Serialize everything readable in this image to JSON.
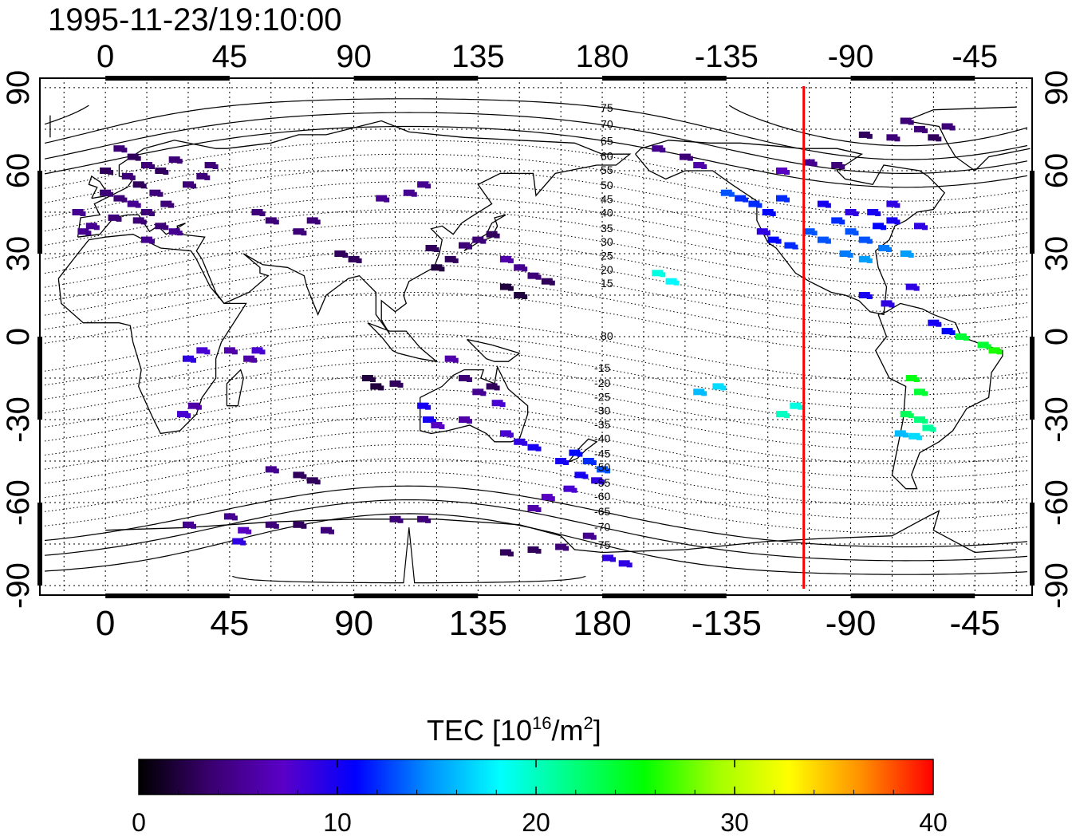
{
  "title": "1995-11-23/19:10:00",
  "x_ticks": [
    "0",
    "45",
    "90",
    "135",
    "180",
    "-135",
    "-90",
    "-45"
  ],
  "y_ticks": [
    "90",
    "60",
    "30",
    "0",
    "-30",
    "-60",
    "-90"
  ],
  "mag_lat_labels_north": [
    "80",
    "75",
    "70",
    "65",
    "60",
    "55",
    "50",
    "45",
    "40",
    "35",
    "30",
    "25",
    "20",
    "15"
  ],
  "mag_lat_labels_south": [
    "-15",
    "-20",
    "-25",
    "-30",
    "-35",
    "-40",
    "-45",
    "-50",
    "-55",
    "-60",
    "-65",
    "-70",
    "-75"
  ],
  "colorbar": {
    "label_prefix": "TEC  [10",
    "label_exp": "16",
    "label_mid": "/m",
    "label_exp2": "2",
    "label_suffix": "]",
    "ticks": [
      "0",
      "10",
      "20",
      "30",
      "40"
    ],
    "colors": [
      "#000000",
      "#3a0070",
      "#5a00c8",
      "#0000ff",
      "#0090ff",
      "#00ffff",
      "#00ff80",
      "#00ff00",
      "#a0ff00",
      "#ffff00",
      "#ff9000",
      "#ff0000"
    ]
  },
  "marker": {
    "longitude": -107,
    "color": "#ff0000"
  },
  "map_data": {
    "projection": "equirectangular",
    "lon_range": [
      -22,
      334
    ],
    "lat_range": [
      -92,
      92
    ],
    "value_range": [
      0,
      40
    ],
    "tec_points": [
      {
        "lon": 5,
        "lat": 68,
        "tec": 4
      },
      {
        "lon": 10,
        "lat": 65,
        "tec": 3
      },
      {
        "lon": 15,
        "lat": 62,
        "tec": 4
      },
      {
        "lon": 20,
        "lat": 60,
        "tec": 3
      },
      {
        "lon": 25,
        "lat": 64,
        "tec": 4
      },
      {
        "lon": 8,
        "lat": 58,
        "tec": 4
      },
      {
        "lon": 12,
        "lat": 55,
        "tec": 3
      },
      {
        "lon": 18,
        "lat": 52,
        "tec": 4
      },
      {
        "lon": 5,
        "lat": 50,
        "tec": 4
      },
      {
        "lon": 0,
        "lat": 52,
        "tec": 4
      },
      {
        "lon": 10,
        "lat": 48,
        "tec": 5
      },
      {
        "lon": 15,
        "lat": 45,
        "tec": 4
      },
      {
        "lon": -5,
        "lat": 40,
        "tec": 5
      },
      {
        "lon": 3,
        "lat": 43,
        "tec": 4
      },
      {
        "lon": 12,
        "lat": 42,
        "tec": 4
      },
      {
        "lon": 20,
        "lat": 40,
        "tec": 4
      },
      {
        "lon": 25,
        "lat": 38,
        "tec": 5
      },
      {
        "lon": 30,
        "lat": 55,
        "tec": 4
      },
      {
        "lon": 35,
        "lat": 58,
        "tec": 4
      },
      {
        "lon": 38,
        "lat": 62,
        "tec": 4
      },
      {
        "lon": -8,
        "lat": 38,
        "tec": 5
      },
      {
        "lon": 0,
        "lat": 60,
        "tec": 3
      },
      {
        "lon": 15,
        "lat": 35,
        "tec": 5
      },
      {
        "lon": -10,
        "lat": 45,
        "tec": 5
      },
      {
        "lon": 22,
        "lat": 48,
        "tec": 4
      },
      {
        "lon": 60,
        "lat": 42,
        "tec": 4
      },
      {
        "lon": 70,
        "lat": 38,
        "tec": 4
      },
      {
        "lon": 75,
        "lat": 42,
        "tec": 4
      },
      {
        "lon": 55,
        "lat": 45,
        "tec": 4
      },
      {
        "lon": 100,
        "lat": 50,
        "tec": 5
      },
      {
        "lon": 110,
        "lat": 52,
        "tec": 5
      },
      {
        "lon": 115,
        "lat": 55,
        "tec": 5
      },
      {
        "lon": 85,
        "lat": 30,
        "tec": 3
      },
      {
        "lon": 90,
        "lat": 28,
        "tec": 3
      },
      {
        "lon": 118,
        "lat": 32,
        "tec": 3
      },
      {
        "lon": 120,
        "lat": 25,
        "tec": 2
      },
      {
        "lon": 125,
        "lat": 28,
        "tec": 3
      },
      {
        "lon": 130,
        "lat": 33,
        "tec": 4
      },
      {
        "lon": 135,
        "lat": 35,
        "tec": 4
      },
      {
        "lon": 140,
        "lat": 37,
        "tec": 3
      },
      {
        "lon": 145,
        "lat": 28,
        "tec": 6
      },
      {
        "lon": 150,
        "lat": 25,
        "tec": 5
      },
      {
        "lon": 155,
        "lat": 22,
        "tec": 4
      },
      {
        "lon": 145,
        "lat": 18,
        "tec": 2
      },
      {
        "lon": 150,
        "lat": 15,
        "tec": 2
      },
      {
        "lon": 160,
        "lat": 20,
        "tec": 3
      },
      {
        "lon": 30,
        "lat": -8,
        "tec": 9
      },
      {
        "lon": 35,
        "lat": -5,
        "tec": 8
      },
      {
        "lon": 45,
        "lat": -5,
        "tec": 6
      },
      {
        "lon": 52,
        "lat": -8,
        "tec": 6
      },
      {
        "lon": 55,
        "lat": -5,
        "tec": 8
      },
      {
        "lon": 28,
        "lat": -28,
        "tec": 8
      },
      {
        "lon": 32,
        "lat": -25,
        "tec": 6
      },
      {
        "lon": 95,
        "lat": -15,
        "tec": 2
      },
      {
        "lon": 98,
        "lat": -18,
        "tec": 2
      },
      {
        "lon": 105,
        "lat": -17,
        "tec": 3
      },
      {
        "lon": 125,
        "lat": -8,
        "tec": 6
      },
      {
        "lon": 130,
        "lat": -15,
        "tec": 4
      },
      {
        "lon": 140,
        "lat": -18,
        "tec": 3
      },
      {
        "lon": 135,
        "lat": -20,
        "tec": 5
      },
      {
        "lon": 115,
        "lat": -25,
        "tec": 10
      },
      {
        "lon": 117,
        "lat": -30,
        "tec": 10
      },
      {
        "lon": 120,
        "lat": -32,
        "tec": 7
      },
      {
        "lon": 130,
        "lat": -30,
        "tec": 6
      },
      {
        "lon": 142,
        "lat": -24,
        "tec": 8
      },
      {
        "lon": 145,
        "lat": -35,
        "tec": 8
      },
      {
        "lon": 150,
        "lat": -38,
        "tec": 9
      },
      {
        "lon": 155,
        "lat": -40,
        "tec": 10
      },
      {
        "lon": 165,
        "lat": -45,
        "tec": 10
      },
      {
        "lon": 170,
        "lat": -42,
        "tec": 11
      },
      {
        "lon": 175,
        "lat": -45,
        "tec": 12
      },
      {
        "lon": 172,
        "lat": -50,
        "tec": 10
      },
      {
        "lon": 168,
        "lat": -55,
        "tec": 8
      },
      {
        "lon": 180,
        "lat": -48,
        "tec": 13
      },
      {
        "lon": 178,
        "lat": -52,
        "tec": 9
      },
      {
        "lon": 160,
        "lat": -58,
        "tec": 7
      },
      {
        "lon": 155,
        "lat": -62,
        "tec": 6
      },
      {
        "lon": 60,
        "lat": -48,
        "tec": 5
      },
      {
        "lon": 70,
        "lat": -50,
        "tec": 3
      },
      {
        "lon": 75,
        "lat": -52,
        "tec": 3
      },
      {
        "lon": 30,
        "lat": -68,
        "tec": 5
      },
      {
        "lon": 45,
        "lat": -65,
        "tec": 5
      },
      {
        "lon": 50,
        "lat": -70,
        "tec": 7
      },
      {
        "lon": 48,
        "lat": -74,
        "tec": 9
      },
      {
        "lon": 60,
        "lat": -68,
        "tec": 4
      },
      {
        "lon": 70,
        "lat": -68,
        "tec": 3
      },
      {
        "lon": 80,
        "lat": -70,
        "tec": 4
      },
      {
        "lon": 105,
        "lat": -66,
        "tec": 4
      },
      {
        "lon": 115,
        "lat": -66,
        "tec": 4
      },
      {
        "lon": 145,
        "lat": -78,
        "tec": 3
      },
      {
        "lon": 155,
        "lat": -77,
        "tec": 3
      },
      {
        "lon": 165,
        "lat": -76,
        "tec": 4
      },
      {
        "lon": 175,
        "lat": -72,
        "tec": 5
      },
      {
        "lon": 182,
        "lat": -80,
        "tec": 9
      },
      {
        "lon": 188,
        "lat": -82,
        "tec": 9
      },
      {
        "lon": 200,
        "lat": 23,
        "tec": 19
      },
      {
        "lon": 205,
        "lat": 20,
        "tec": 18
      },
      {
        "lon": 215,
        "lat": -20,
        "tec": 16
      },
      {
        "lon": 222,
        "lat": -18,
        "tec": 17
      },
      {
        "lon": 245,
        "lat": -28,
        "tec": 20
      },
      {
        "lon": 250,
        "lat": -25,
        "tec": 19
      },
      {
        "lon": 225,
        "lat": 52,
        "tec": 13
      },
      {
        "lon": 230,
        "lat": 50,
        "tec": 12
      },
      {
        "lon": 235,
        "lat": 48,
        "tec": 12
      },
      {
        "lon": 240,
        "lat": 45,
        "tec": 11
      },
      {
        "lon": 245,
        "lat": 50,
        "tec": 12
      },
      {
        "lon": 238,
        "lat": 38,
        "tec": 9
      },
      {
        "lon": 242,
        "lat": 35,
        "tec": 11
      },
      {
        "lon": 248,
        "lat": 33,
        "tec": 12
      },
      {
        "lon": 255,
        "lat": 38,
        "tec": 13
      },
      {
        "lon": 260,
        "lat": 35,
        "tec": 13
      },
      {
        "lon": 265,
        "lat": 42,
        "tec": 12
      },
      {
        "lon": 270,
        "lat": 38,
        "tec": 13
      },
      {
        "lon": 275,
        "lat": 35,
        "tec": 13
      },
      {
        "lon": 280,
        "lat": 40,
        "tec": 11
      },
      {
        "lon": 285,
        "lat": 42,
        "tec": 10
      },
      {
        "lon": 268,
        "lat": 30,
        "tec": 14
      },
      {
        "lon": 275,
        "lat": 28,
        "tec": 15
      },
      {
        "lon": 282,
        "lat": 32,
        "tec": 14
      },
      {
        "lon": 290,
        "lat": 30,
        "tec": 15
      },
      {
        "lon": 295,
        "lat": 40,
        "tec": 9
      },
      {
        "lon": 285,
        "lat": 48,
        "tec": 9
      },
      {
        "lon": 260,
        "lat": 48,
        "tec": 10
      },
      {
        "lon": 270,
        "lat": 45,
        "tec": 9
      },
      {
        "lon": 278,
        "lat": 45,
        "tec": 10
      },
      {
        "lon": 275,
        "lat": 15,
        "tec": 10
      },
      {
        "lon": 283,
        "lat": 12,
        "tec": 9
      },
      {
        "lon": 292,
        "lat": 18,
        "tec": 9
      },
      {
        "lon": 300,
        "lat": 5,
        "tec": 10
      },
      {
        "lon": 305,
        "lat": 2,
        "tec": 11
      },
      {
        "lon": 310,
        "lat": 0,
        "tec": 24
      },
      {
        "lon": 318,
        "lat": -3,
        "tec": 24
      },
      {
        "lon": 322,
        "lat": -5,
        "tec": 26
      },
      {
        "lon": 292,
        "lat": -15,
        "tec": 25
      },
      {
        "lon": 295,
        "lat": -20,
        "tec": 24
      },
      {
        "lon": 290,
        "lat": -28,
        "tec": 23
      },
      {
        "lon": 295,
        "lat": -30,
        "tec": 22
      },
      {
        "lon": 298,
        "lat": -33,
        "tec": 21
      },
      {
        "lon": 288,
        "lat": -35,
        "tec": 16
      },
      {
        "lon": 293,
        "lat": -36,
        "tec": 17
      },
      {
        "lon": 245,
        "lat": 60,
        "tec": 7
      },
      {
        "lon": 255,
        "lat": 63,
        "tec": 5
      },
      {
        "lon": 285,
        "lat": 72,
        "tec": 4
      },
      {
        "lon": 295,
        "lat": 75,
        "tec": 4
      },
      {
        "lon": 300,
        "lat": 72,
        "tec": 3
      },
      {
        "lon": 305,
        "lat": 76,
        "tec": 4
      },
      {
        "lon": 275,
        "lat": 73,
        "tec": 3
      },
      {
        "lon": 265,
        "lat": 62,
        "tec": 4
      },
      {
        "lon": 290,
        "lat": 78,
        "tec": 4
      },
      {
        "lon": 210,
        "lat": 65,
        "tec": 4
      },
      {
        "lon": 200,
        "lat": 68,
        "tec": 5
      },
      {
        "lon": 215,
        "lat": 62,
        "tec": 6
      }
    ]
  }
}
